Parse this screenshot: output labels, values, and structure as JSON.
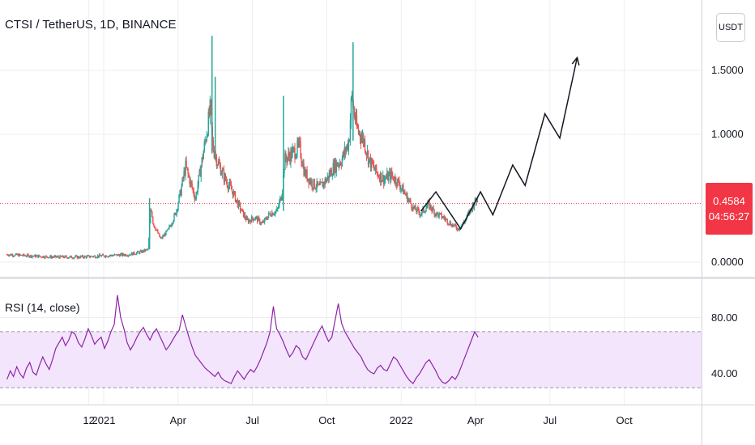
{
  "title": "CTSI / TetherUS, 1D, BINANCE",
  "currency_button": "USDT",
  "price_badge": {
    "price": "0.4584",
    "countdown": "04:56:27"
  },
  "rsi_title": "RSI (14, close)",
  "colors": {
    "up": "#26a69a",
    "down": "#ef5350",
    "rsi": "#8e24aa",
    "rsi_band": "#f3e5fb",
    "price_line": "#f23645",
    "badge": "#f23645"
  },
  "chart_data": [
    {
      "type": "candlestick",
      "title": "CTSI / TetherUS, 1D, BINANCE",
      "y_ticks": [
        "1.5000",
        "1.0000",
        "0.0000"
      ],
      "y_tick_values": [
        1.5,
        1.0,
        0.0
      ],
      "x_ticks": [
        "12",
        "2021",
        "Apr",
        "Jul",
        "Oct",
        "2022",
        "Apr",
        "Jul",
        "Oct"
      ],
      "x_tick_months": [
        -0.6,
        0.0,
        3.0,
        6.0,
        9.0,
        12.0,
        15.0,
        18.0,
        21.0
      ],
      "x_unit": "months since 2021-01-01",
      "current_price": 0.4584,
      "ylim": [
        -0.12,
        2.05
      ],
      "price_path": [
        [
          -3.9,
          0.06
        ],
        [
          -3.0,
          0.05
        ],
        [
          -2.0,
          0.04
        ],
        [
          -1.0,
          0.04
        ],
        [
          0.0,
          0.05
        ],
        [
          1.0,
          0.06
        ],
        [
          1.5,
          0.08
        ],
        [
          1.8,
          0.1
        ],
        [
          1.9,
          0.45
        ],
        [
          2.0,
          0.3
        ],
        [
          2.3,
          0.18
        ],
        [
          2.6,
          0.25
        ],
        [
          2.9,
          0.38
        ],
        [
          3.1,
          0.55
        ],
        [
          3.3,
          0.75
        ],
        [
          3.5,
          0.62
        ],
        [
          3.7,
          0.5
        ],
        [
          3.9,
          0.72
        ],
        [
          4.1,
          0.95
        ],
        [
          4.3,
          1.2
        ],
        [
          4.4,
          0.9
        ],
        [
          4.6,
          0.78
        ],
        [
          4.9,
          0.65
        ],
        [
          5.2,
          0.55
        ],
        [
          5.5,
          0.42
        ],
        [
          5.8,
          0.32
        ],
        [
          6.1,
          0.35
        ],
        [
          6.4,
          0.3
        ],
        [
          6.7,
          0.38
        ],
        [
          7.0,
          0.4
        ],
        [
          7.2,
          0.55
        ],
        [
          7.3,
          0.8
        ],
        [
          7.6,
          0.85
        ],
        [
          7.9,
          0.9
        ],
        [
          8.1,
          0.7
        ],
        [
          8.4,
          0.62
        ],
        [
          8.7,
          0.58
        ],
        [
          9.0,
          0.65
        ],
        [
          9.3,
          0.75
        ],
        [
          9.6,
          0.8
        ],
        [
          9.9,
          0.95
        ],
        [
          10.0,
          1.3
        ],
        [
          10.2,
          1.05
        ],
        [
          10.5,
          0.95
        ],
        [
          10.7,
          0.8
        ],
        [
          11.0,
          0.7
        ],
        [
          11.3,
          0.65
        ],
        [
          11.6,
          0.68
        ],
        [
          11.9,
          0.62
        ],
        [
          12.2,
          0.52
        ],
        [
          12.5,
          0.42
        ],
        [
          12.8,
          0.38
        ],
        [
          13.1,
          0.45
        ],
        [
          13.4,
          0.38
        ],
        [
          13.7,
          0.35
        ],
        [
          14.0,
          0.3
        ],
        [
          14.3,
          0.26
        ],
        [
          14.6,
          0.33
        ],
        [
          14.9,
          0.45
        ],
        [
          15.1,
          0.5
        ]
      ],
      "spikes": [
        {
          "month": 4.37,
          "high": 1.77,
          "low": 0.85
        },
        {
          "month": 10.06,
          "high": 1.72,
          "low": 0.95
        },
        {
          "month": 7.25,
          "high": 1.3,
          "low": 0.4
        },
        {
          "month": 4.5,
          "high": 1.45,
          "low": 0.8
        },
        {
          "month": 1.85,
          "high": 0.5,
          "low": 0.1
        }
      ],
      "projection": [
        [
          12.8,
          0.4
        ],
        [
          13.4,
          0.55
        ],
        [
          14.4,
          0.26
        ],
        [
          15.2,
          0.55
        ],
        [
          15.7,
          0.37
        ],
        [
          16.5,
          0.76
        ],
        [
          17.0,
          0.6
        ],
        [
          17.8,
          1.16
        ],
        [
          18.4,
          0.97
        ],
        [
          19.1,
          1.6
        ]
      ]
    },
    {
      "type": "line",
      "title": "RSI (14, close)",
      "y_ticks": [
        "80.00",
        "40.00"
      ],
      "y_tick_values": [
        80,
        40
      ],
      "band": [
        30,
        70
      ],
      "ylim": [
        18,
        108
      ],
      "x_range_months": [
        -3.9,
        15.1
      ],
      "values": [
        36,
        42,
        38,
        45,
        40,
        37,
        44,
        48,
        41,
        39,
        46,
        52,
        47,
        43,
        50,
        58,
        62,
        66,
        60,
        64,
        70,
        68,
        62,
        59,
        65,
        72,
        67,
        61,
        64,
        66,
        58,
        63,
        70,
        75,
        96,
        80,
        72,
        62,
        57,
        61,
        66,
        70,
        73,
        68,
        64,
        69,
        72,
        67,
        62,
        57,
        60,
        64,
        68,
        71,
        82,
        74,
        66,
        59,
        53,
        50,
        47,
        44,
        42,
        40,
        38,
        41,
        37,
        35,
        34,
        33,
        38,
        42,
        39,
        36,
        40,
        43,
        41,
        45,
        50,
        56,
        62,
        70,
        88,
        72,
        68,
        63,
        57,
        52,
        55,
        60,
        58,
        52,
        50,
        55,
        60,
        65,
        70,
        74,
        68,
        63,
        66,
        78,
        90,
        76,
        70,
        66,
        62,
        58,
        55,
        52,
        47,
        43,
        41,
        40,
        44,
        46,
        43,
        42,
        47,
        52,
        50,
        46,
        42,
        38,
        35,
        33,
        37,
        40,
        44,
        48,
        50,
        46,
        42,
        37,
        34,
        33,
        35,
        38,
        36,
        40,
        46,
        52,
        58,
        64,
        70,
        66
      ]
    }
  ]
}
